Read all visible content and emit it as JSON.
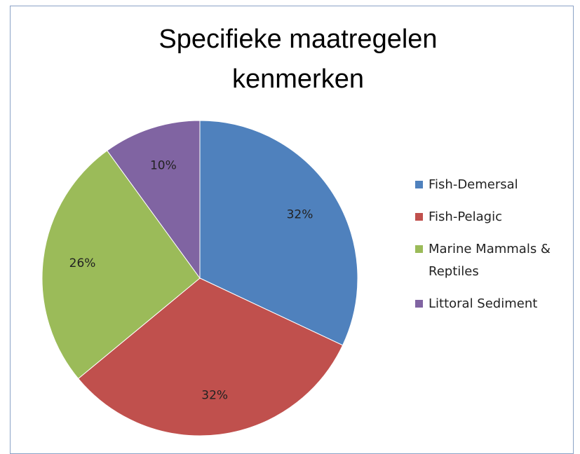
{
  "chart_data": {
    "type": "pie",
    "title": "Specifieke maatregelen kenmerken",
    "categories": [
      "Fish-Demersal",
      "Fish-Pelagic",
      "Marine Mammals & Reptiles",
      "Littoral Sediment"
    ],
    "values": [
      32,
      32,
      26,
      10
    ],
    "value_labels": [
      "32%",
      "32%",
      "26%",
      "10%"
    ],
    "colors": [
      "#4f81bd",
      "#c0504d",
      "#9bbb59",
      "#8064a2"
    ],
    "legend": "right"
  }
}
